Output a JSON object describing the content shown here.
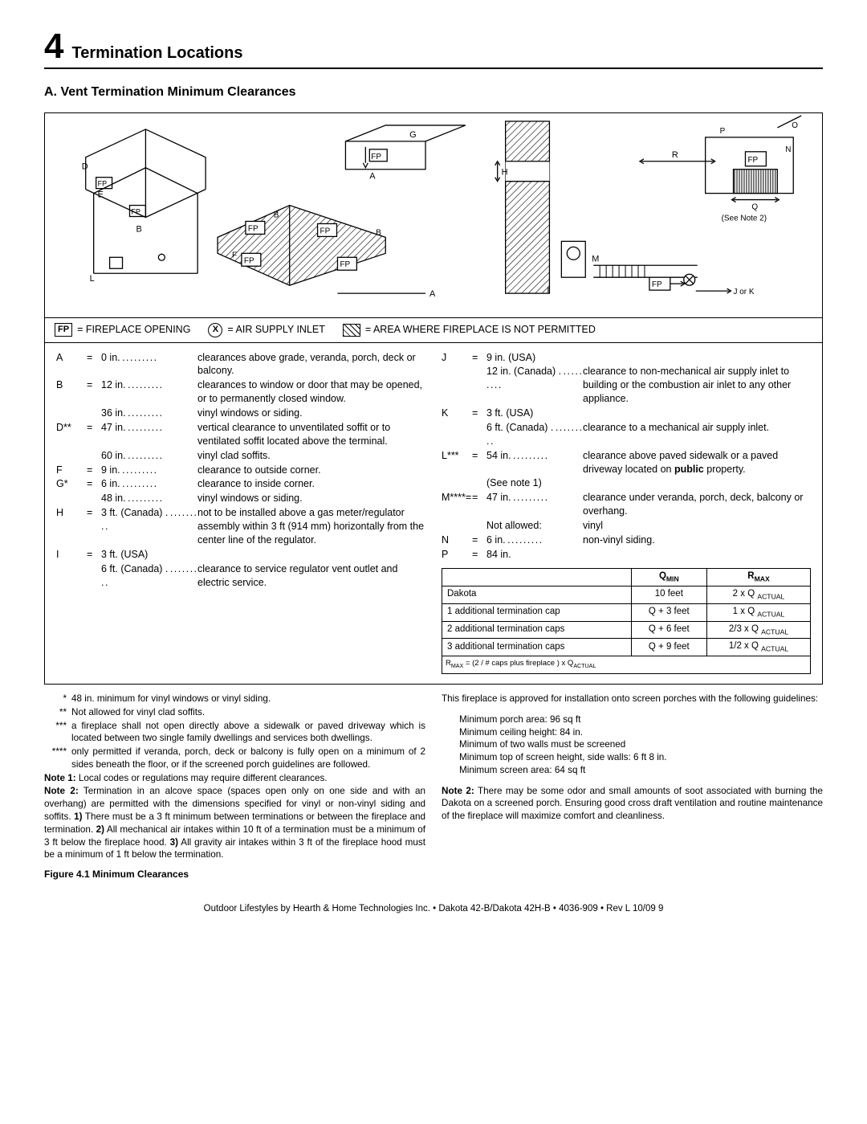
{
  "header": {
    "chapter_num": "4",
    "chapter_title": "Termination Locations",
    "sub_title": "A. Vent Termination Minimum Clearances"
  },
  "legend": {
    "fp": "= FIREPLACE OPENING",
    "x": "= AIR SUPPLY INLET",
    "hatch": "= AREA WHERE FIREPLACE IS NOT PERMITTED"
  },
  "defs_left": [
    {
      "k": "A",
      "v": "0 in.",
      "d": "clearances above grade, veranda, porch, deck or balcony."
    },
    {
      "k": "B",
      "v": "12 in.",
      "d": "clearances to window or door that may be opened, or to permanently closed window."
    },
    {
      "k": "",
      "v": "36 in.",
      "d": "vinyl windows or siding."
    },
    {
      "k": "D**",
      "v": "47 in.",
      "d": "vertical clearance to unventilated soffit or to ventilated soffit located above the terminal."
    },
    {
      "k": "",
      "v": "60 in.",
      "d": "vinyl clad soffits."
    },
    {
      "k": "F",
      "v": "9 in.",
      "d": "clearance to outside corner."
    },
    {
      "k": "G*",
      "v": "6 in.",
      "d": "clearance to inside corner."
    },
    {
      "k": "",
      "v": "48 in.",
      "d": "vinyl windows or siding."
    },
    {
      "k": "H",
      "v": "3 ft. (Canada) .",
      "d": "not to be installed above a gas meter/regulator assembly within 3 ft (914 mm) horizontally from the center line of the regulator."
    },
    {
      "k": "I",
      "v": "3 ft. (USA)",
      "d": ""
    },
    {
      "k": "",
      "v": "6 ft. (Canada) .",
      "d": "clearance to service regulator vent outlet and electric service."
    }
  ],
  "defs_right": [
    {
      "k": "J",
      "v": "9 in. (USA)",
      "d": ""
    },
    {
      "k": "",
      "v": "12 in. (Canada) .",
      "d": "clearance to non-mechanical air supply inlet to building or the combustion air inlet to any other appliance."
    },
    {
      "k": "K",
      "v": "3 ft. (USA)",
      "d": ""
    },
    {
      "k": "",
      "v": "6 ft. (Canada) .",
      "d": "clearance to a mechanical air supply inlet."
    },
    {
      "k": "L***",
      "v": "54 in.",
      "d": "clearance above paved sidewalk or a paved driveway located on public property.",
      "extra": "(See note 1)"
    },
    {
      "k": "M****=",
      "v": "47 in.",
      "d": "clearance under veranda, porch, deck, balcony or overhang."
    },
    {
      "k": "",
      "v": "Not allowed:",
      "d": "vinyl",
      "nodots": true
    },
    {
      "k": "N",
      "v": "6 in.",
      "d": "non-vinyl siding."
    },
    {
      "k": "P",
      "v": "84 in.",
      "d": "",
      "nodots": true
    }
  ],
  "table": {
    "head": [
      "",
      "Q",
      "R"
    ],
    "head_sub": [
      "",
      "MIN",
      "MAX"
    ],
    "rows": [
      [
        "Dakota",
        "10 feet",
        "2 x Q ACTUAL"
      ],
      [
        "1 additional termination cap",
        "Q + 3 feet",
        "1 x Q ACTUAL"
      ],
      [
        "2 additional termination caps",
        "Q + 6 feet",
        "2/3 x Q ACTUAL"
      ],
      [
        "3 additional termination caps",
        "Q + 9 feet",
        "1/2 x Q ACTUAL"
      ]
    ],
    "formula": "R MAX = (2 / # caps plus fireplace ) x Q ACTUAL"
  },
  "stars": [
    {
      "k": "*",
      "d": "48 in. minimum for vinyl windows or vinyl siding."
    },
    {
      "k": "**",
      "d": "Not allowed for vinyl clad soffits."
    },
    {
      "k": "***",
      "d": "a fireplace shall not open directly above a sidewalk or paved driveway which is located between two single family dwellings and services both dwellings."
    },
    {
      "k": "****",
      "d": "only permitted if veranda, porch, deck or balcony is fully open on a minimum of 2 sides beneath the floor, or if the screened porch guidelines are followed."
    }
  ],
  "notes_left": [
    {
      "label": "Note 1:",
      "d": "Local codes or regulations may require different clearances."
    },
    {
      "label": "Note 2:",
      "d": "Termination in an alcove space (spaces open only on one side and with an overhang) are permitted with the dimensions specified for vinyl or non-vinyl siding and soffits. 1) There must be a 3 ft minimum between terminations or between the fireplace and termination. 2) All mechanical air intakes within 10 ft of a termination must be a minimum of 3 ft below the fireplace hood. 3) All gravity air intakes within 3 ft of the fireplace hood must be a minimum of 1 ft below the termination."
    }
  ],
  "approval_text": "This fireplace is approved for installation onto screen porches with the following guidelines:",
  "guidelines": [
    "Minimum porch area: 96 sq ft",
    "Minimum ceiling height: 84 in.",
    "Minimum of two walls must be screened",
    "Minimum top of screen height, side walls: 6 ft 8 in.",
    "Minimum screen area: 64 sq ft"
  ],
  "note2_right": {
    "label": "Note 2:",
    "d": "There may be some odor and small amounts of soot associated with burning the Dakota on a screened porch. Ensuring good cross draft ventilation and routine maintenance of the fireplace will maximize comfort and cleanliness."
  },
  "fig_caption": "Figure 4.1 Minimum Clearances",
  "footer": "Outdoor Lifestyles by Hearth & Home Technologies Inc. • Dakota 42-B/Dakota 42H-B • 4036-909 • Rev L  10/09 9",
  "diagram": {
    "see_note": "(See Note 2)",
    "jork": "J or K"
  }
}
